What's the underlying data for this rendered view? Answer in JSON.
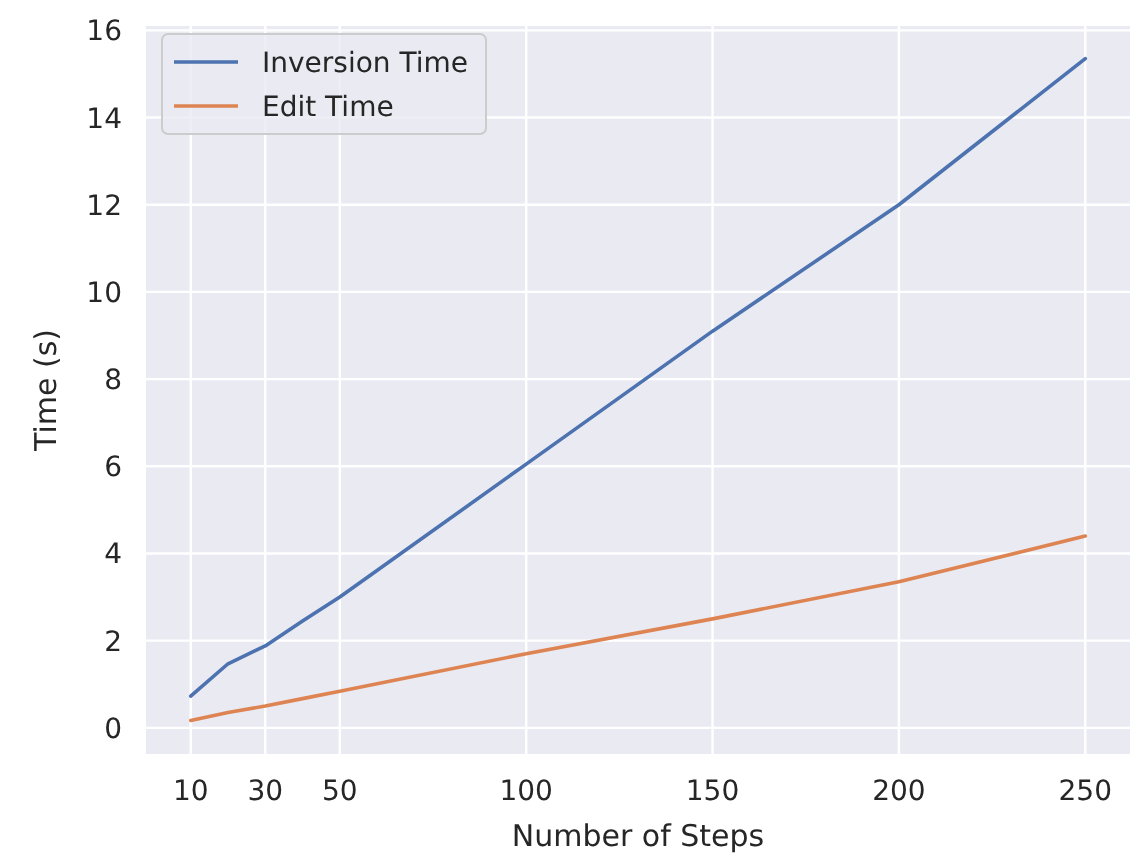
{
  "chart_data": {
    "type": "line",
    "xlabel": "Number of Steps",
    "ylabel": "Time (s)",
    "x": [
      10,
      20,
      30,
      40,
      50,
      100,
      150,
      200,
      250
    ],
    "series": [
      {
        "name": "Inversion Time",
        "color": "#4c72b0",
        "values": [
          0.73,
          1.47,
          1.88,
          2.45,
          3.0,
          6.05,
          9.1,
          12.0,
          15.35
        ]
      },
      {
        "name": "Edit Time",
        "color": "#dd8452",
        "values": [
          0.17,
          0.35,
          0.5,
          0.67,
          0.84,
          1.7,
          2.5,
          3.35,
          4.4
        ]
      }
    ],
    "xlim": [
      -2,
      262
    ],
    "ylim": [
      -0.6,
      16.1
    ],
    "xticks": [
      10,
      30,
      50,
      100,
      150,
      200,
      250
    ],
    "yticks": [
      0,
      2,
      4,
      6,
      8,
      10,
      12,
      14,
      16
    ],
    "grid": true,
    "legend": "top left",
    "line_style": "solid",
    "marker": "none"
  }
}
